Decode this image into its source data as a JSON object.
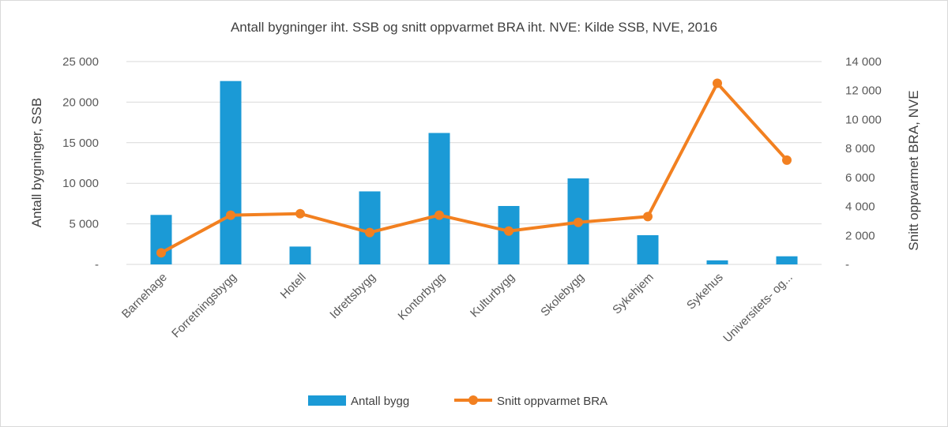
{
  "chart_data": {
    "type": "bar+line",
    "title": "Antall bygninger iht. SSB og snitt oppvarmet BRA iht. NVE:  Kilde SSB, NVE,  2016",
    "categories": [
      "Barnehage",
      "Forretningsbygg",
      "Hotell",
      "Idrettsbygg",
      "Kontorbygg",
      "Kulturbygg",
      "Skolebygg",
      "Sykehjem",
      "Sykehus",
      "Universitets- og..."
    ],
    "ylabel_left": "Antall bygninger, SSB",
    "ylabel_right": "Snitt oppvarmet BRA,  NVE",
    "ylim_left": [
      0,
      25000
    ],
    "ylim_right": [
      0,
      14000
    ],
    "yticks_left": [
      "-",
      "5 000",
      "10 000",
      "15 000",
      "20 000",
      "25 000"
    ],
    "yticks_right": [
      "-",
      "2 000",
      "4 000",
      "6 000",
      "8 000",
      "10 000",
      "12 000",
      "14 000"
    ],
    "series": [
      {
        "name": "Antall bygg",
        "type": "bar",
        "axis": "left",
        "color": "#1b9ad6",
        "values": [
          6100,
          22600,
          2200,
          9000,
          16200,
          7200,
          10600,
          3600,
          500,
          1000
        ]
      },
      {
        "name": "Snitt oppvarmet BRA",
        "type": "line",
        "axis": "right",
        "color": "#f28020",
        "values": [
          800,
          3400,
          3500,
          2200,
          3400,
          2300,
          2900,
          3300,
          12500,
          7200
        ]
      }
    ],
    "grid": true,
    "legend_position": "bottom"
  }
}
